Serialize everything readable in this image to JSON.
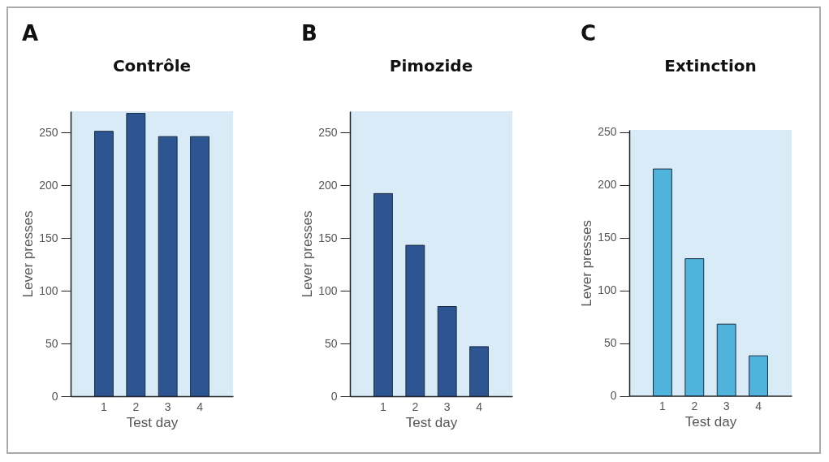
{
  "chart_data": [
    {
      "type": "bar",
      "title": "Contrôle",
      "annotations": [
        "A"
      ],
      "xlabel": "Test day",
      "ylabel": "Lever presses",
      "categories": [
        "1",
        "2",
        "3",
        "4"
      ],
      "values": [
        251,
        268,
        246,
        246
      ],
      "color": "#2c5592",
      "ylim": [
        0,
        270
      ],
      "yticks": [
        0,
        50,
        100,
        150,
        200,
        250
      ]
    },
    {
      "type": "bar",
      "title": "Pimozide",
      "annotations": [
        "B"
      ],
      "xlabel": "Test day",
      "ylabel": "Lever presses",
      "categories": [
        "1",
        "2",
        "3",
        "4"
      ],
      "values": [
        192,
        143,
        85,
        47
      ],
      "color": "#2c5592",
      "ylim": [
        0,
        270
      ],
      "yticks": [
        0,
        50,
        100,
        150,
        200,
        250
      ]
    },
    {
      "type": "bar",
      "title": "Extinction",
      "annotations": [
        "C"
      ],
      "xlabel": "Test day",
      "ylabel": "Lever presses",
      "categories": [
        "1",
        "2",
        "3",
        "4"
      ],
      "values": [
        215,
        130,
        68,
        38
      ],
      "color": "#4fb3dc",
      "ylim": [
        0,
        252
      ],
      "yticks": [
        0,
        50,
        100,
        150,
        200,
        250
      ]
    }
  ]
}
